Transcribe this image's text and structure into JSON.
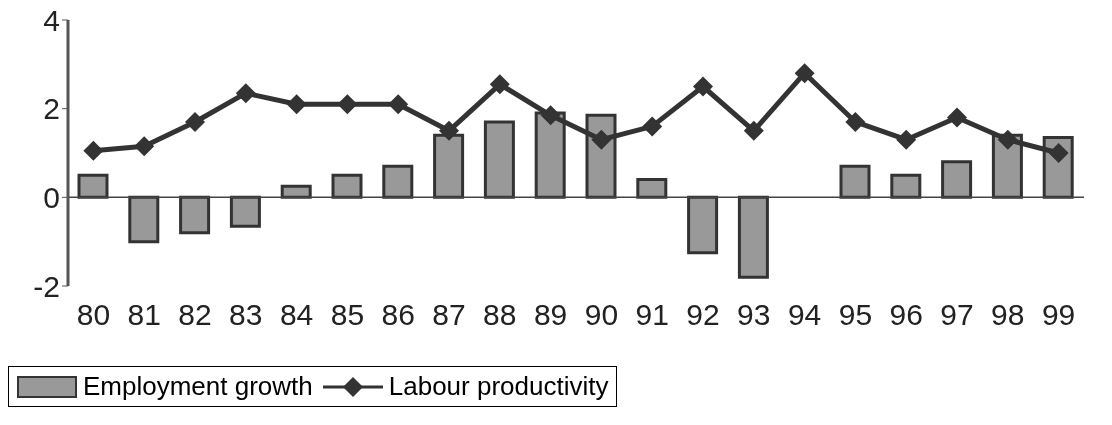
{
  "chart_data": {
    "type": "bar",
    "categories": [
      "80",
      "81",
      "82",
      "83",
      "84",
      "85",
      "86",
      "87",
      "88",
      "89",
      "90",
      "91",
      "92",
      "93",
      "94",
      "95",
      "96",
      "97",
      "98",
      "99"
    ],
    "series": [
      {
        "name": "Employment growth",
        "color": "#999999",
        "values": [
          0.5,
          -1.0,
          -0.8,
          -0.65,
          0.25,
          0.5,
          0.7,
          1.4,
          1.7,
          1.9,
          1.85,
          0.4,
          -1.25,
          -1.8,
          null,
          0.7,
          0.5,
          0.8,
          1.4,
          1.35
        ]
      },
      {
        "name": "Labour productivity",
        "type": "line",
        "color": "#333333",
        "values": [
          1.05,
          1.15,
          1.7,
          2.35,
          2.1,
          2.1,
          2.1,
          1.5,
          2.55,
          1.85,
          1.3,
          1.6,
          2.5,
          1.5,
          2.8,
          1.7,
          1.3,
          1.8,
          1.3,
          1.0
        ]
      }
    ],
    "ylim": [
      -2,
      4
    ],
    "yticks": [
      -2,
      0,
      2,
      4
    ],
    "legend": "bottom left",
    "marker": "diamond",
    "line_style": "solid"
  }
}
